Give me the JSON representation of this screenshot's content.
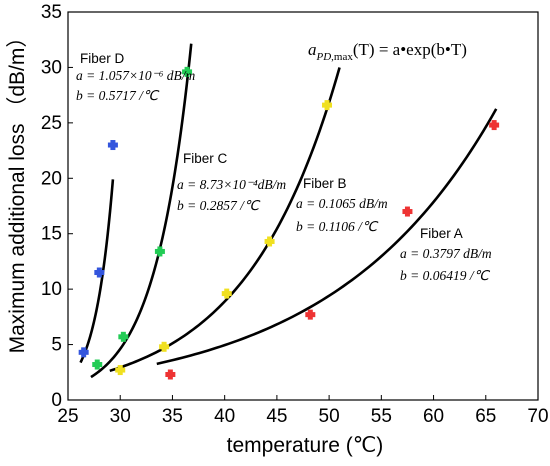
{
  "chart_data": {
    "type": "scatter",
    "title": "",
    "xlabel": "temperature (℃)",
    "ylabel": "Maximum additional loss （dB/m）",
    "xlim": [
      25,
      70
    ],
    "ylim": [
      0,
      35
    ],
    "x_ticks": [
      "25",
      "30",
      "35",
      "40",
      "45",
      "50",
      "55",
      "60",
      "65",
      "70"
    ],
    "y_ticks": [
      "0",
      "5",
      "10",
      "15",
      "20",
      "25",
      "30",
      "35"
    ],
    "formula": "a_{PD,max}(T) = a • exp(b • T)",
    "formula_main": "a",
    "formula_sub": "PD",
    "formula_sub2": ",max",
    "formula_rest": "(T) = a•exp(b•T)",
    "grid": false,
    "series": [
      {
        "name": "Fiber D",
        "color": "#3355dd",
        "a_label": "a = 1.057×10⁻⁶ dB/m",
        "b_label": "b = 0.5717 /℃",
        "a": 1.057e-06,
        "b": 0.5717,
        "fit_x_range": [
          26.2,
          29.3
        ],
        "points": [
          [
            26.5,
            4.3
          ],
          [
            28.0,
            11.5
          ],
          [
            29.3,
            23.0
          ]
        ]
      },
      {
        "name": "Fiber C",
        "color": "#22cc55",
        "a_label": "a = 8.73×10⁻⁴dB/m",
        "b_label": "b = 0.2857 /℃",
        "a": 0.000873,
        "b": 0.2857,
        "fit_x_range": [
          27.2,
          36.8
        ],
        "points": [
          [
            27.8,
            3.2
          ],
          [
            30.3,
            5.7
          ],
          [
            33.8,
            13.4
          ],
          [
            36.4,
            29.6
          ]
        ]
      },
      {
        "name": "Fiber B",
        "color": "#f0e020",
        "a_label": "a = 0.1065 dB/m",
        "b_label": "b = 0.1106 /℃",
        "a": 0.1065,
        "b": 0.1106,
        "fit_x_range": [
          29.0,
          51.0
        ],
        "points": [
          [
            30.0,
            2.7
          ],
          [
            34.2,
            4.8
          ],
          [
            40.2,
            9.6
          ],
          [
            44.3,
            14.3
          ],
          [
            49.8,
            26.6
          ]
        ]
      },
      {
        "name": "Fiber A",
        "color": "#ee3333",
        "a_label": "a = 0.3797 dB/m",
        "b_label": "b = 0.06419 /℃",
        "a": 0.3797,
        "b": 0.06419,
        "fit_x_range": [
          33.5,
          66.0
        ],
        "points": [
          [
            34.8,
            2.3
          ],
          [
            48.2,
            7.7
          ],
          [
            57.5,
            17.0
          ],
          [
            65.8,
            24.8
          ]
        ]
      }
    ]
  }
}
